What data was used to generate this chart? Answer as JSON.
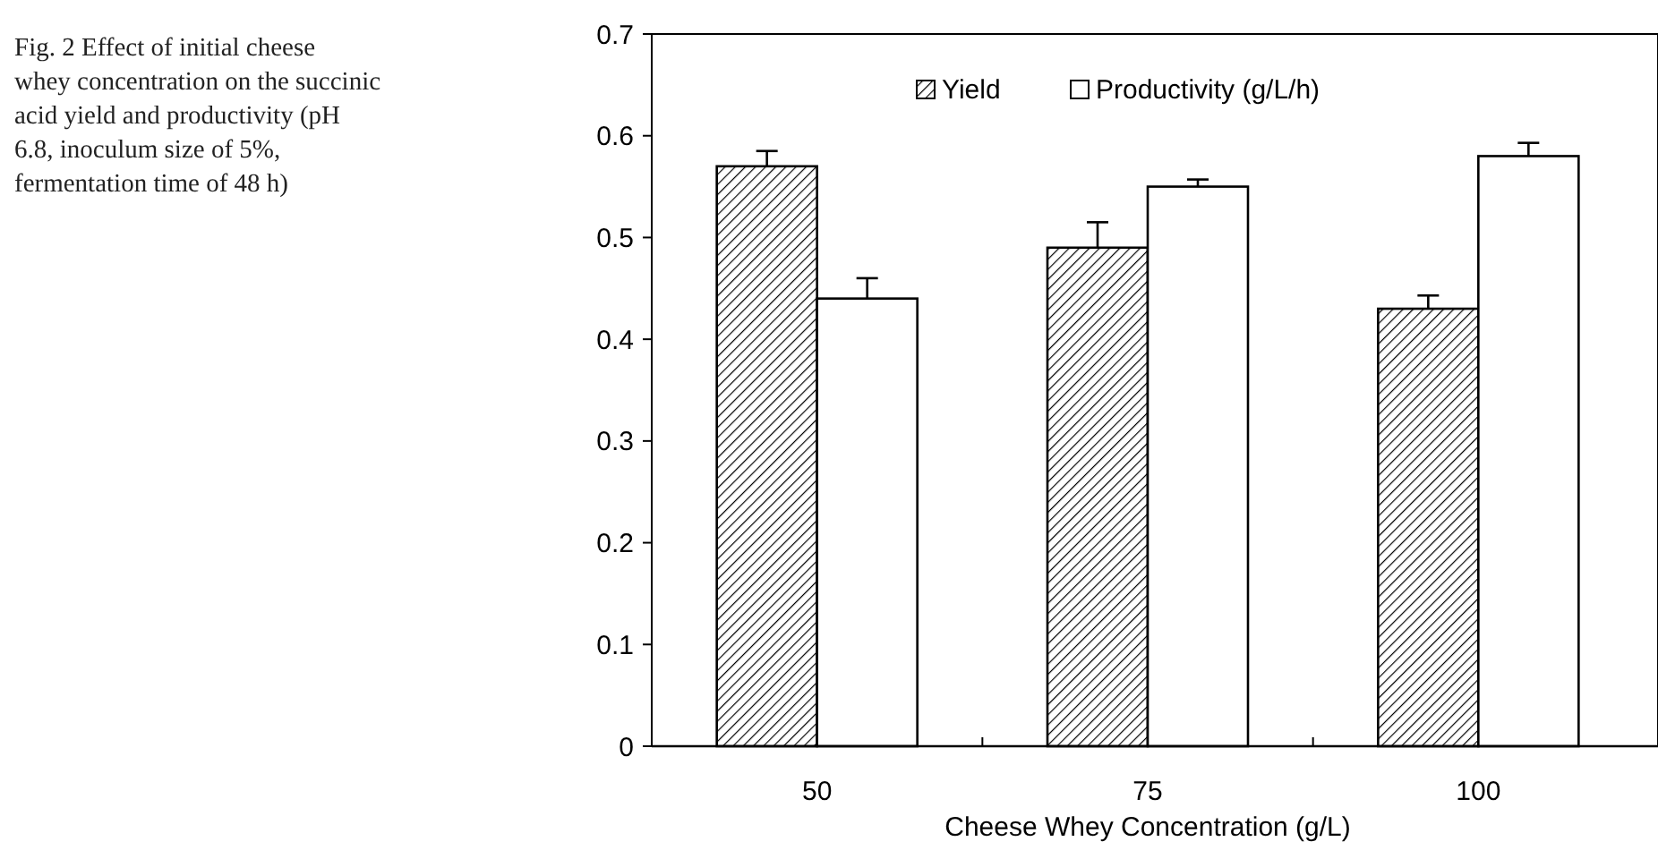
{
  "chart_data": {
    "type": "bar",
    "xlabel": "Cheese Whey Concentration (g/L)",
    "categories": [
      "50",
      "75",
      "100"
    ],
    "series": [
      {
        "name": "Yield",
        "color": "#000000",
        "values": [
          0.57,
          0.49,
          0.43
        ],
        "errors": [
          0.015,
          0.025,
          0.013
        ]
      },
      {
        "name": "Productivity (g/L/h)",
        "color": "#ffffff",
        "values": [
          0.44,
          0.55,
          0.58
        ],
        "errors": [
          0.02,
          0.007,
          0.013
        ]
      }
    ],
    "ylim": [
      0,
      0.7
    ],
    "yticks": [
      0,
      0.1,
      0.2,
      0.3,
      0.4,
      0.5,
      0.6,
      0.7
    ],
    "grid": false,
    "legend": "top",
    "annotations": [
      "Fig. 2 Effect of initial cheese whey concentration on the succinic acid yield and productivity (pH 6.8, inoculum size of 5%, fermentation time of 48 h)"
    ]
  }
}
